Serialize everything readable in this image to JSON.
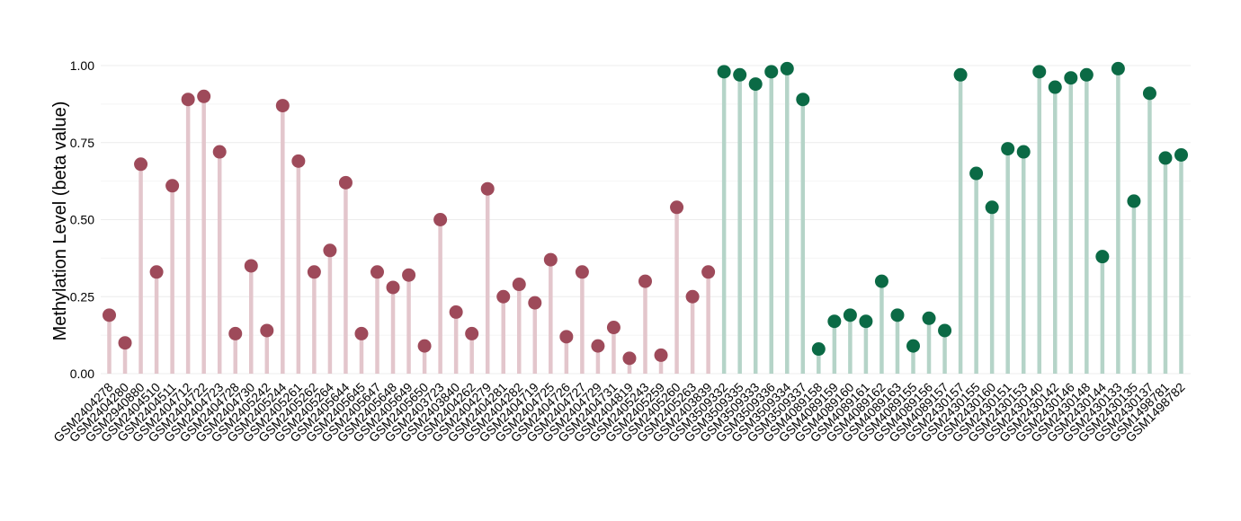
{
  "chart_data": {
    "type": "lollipop",
    "ylabel": "Methylation Level (beta value)",
    "ylim": [
      0,
      1.05
    ],
    "yticks": [
      0.0,
      0.25,
      0.5,
      0.75,
      1.0
    ],
    "ytick_labels": [
      "0.00",
      "0.25",
      "0.50",
      "0.75",
      "1.00"
    ],
    "grid": true,
    "colors": {
      "group1_point": "#9e4a5a",
      "group1_stem": "#e3c6cc",
      "group2_point": "#0b6a45",
      "group2_stem": "#b5d4c8",
      "grid": "#ececec"
    },
    "categories": [
      "GSM2404278",
      "GSM2404280",
      "GSM2940880",
      "GSM2404510",
      "GSM2404511",
      "GSM2404712",
      "GSM2404722",
      "GSM2404723",
      "GSM2404728",
      "GSM2404730",
      "GSM2405242",
      "GSM2405244",
      "GSM2405261",
      "GSM2405262",
      "GSM2405264",
      "GSM2405644",
      "GSM2405645",
      "GSM2405647",
      "GSM2405648",
      "GSM2405649",
      "GSM2405650",
      "GSM2403723",
      "GSM2403840",
      "GSM2404262",
      "GSM2404279",
      "GSM2404281",
      "GSM2404282",
      "GSM2404719",
      "GSM2404725",
      "GSM2404726",
      "GSM2404727",
      "GSM2404729",
      "GSM2404731",
      "GSM2404819",
      "GSM2405243",
      "GSM2405259",
      "GSM2405260",
      "GSM2405263",
      "GSM2403839",
      "GSM3509332",
      "GSM3509335",
      "GSM3509333",
      "GSM3509336",
      "GSM3509334",
      "GSM3509337",
      "GSM4089158",
      "GSM4089159",
      "GSM4089160",
      "GSM4089161",
      "GSM4089162",
      "GSM4089163",
      "GSM4089155",
      "GSM4089156",
      "GSM4089157",
      "GSM2430157",
      "GSM2430155",
      "GSM2430160",
      "GSM2430151",
      "GSM2430153",
      "GSM2430140",
      "GSM2430142",
      "GSM2430146",
      "GSM2430148",
      "GSM2430144",
      "GSM2430133",
      "GSM2430135",
      "GSM2430137",
      "GSM1498781",
      "GSM1498782"
    ],
    "values": [
      0.19,
      0.1,
      0.68,
      0.33,
      0.61,
      0.89,
      0.9,
      0.72,
      0.13,
      0.35,
      0.14,
      0.87,
      0.69,
      0.33,
      0.4,
      0.62,
      0.13,
      0.33,
      0.28,
      0.32,
      0.09,
      0.5,
      0.2,
      0.13,
      0.6,
      0.25,
      0.29,
      0.23,
      0.37,
      0.12,
      0.33,
      0.09,
      0.15,
      0.05,
      0.3,
      0.06,
      0.54,
      0.25,
      0.33,
      0.98,
      0.97,
      0.94,
      0.98,
      0.99,
      0.89,
      0.08,
      0.17,
      0.19,
      0.17,
      0.3,
      0.19,
      0.09,
      0.18,
      0.14,
      0.97,
      0.65,
      0.54,
      0.73,
      0.72,
      0.98,
      0.93,
      0.96,
      0.97,
      0.38,
      0.99,
      0.56,
      0.91,
      0.7,
      0.71
    ],
    "group_split": 39
  }
}
